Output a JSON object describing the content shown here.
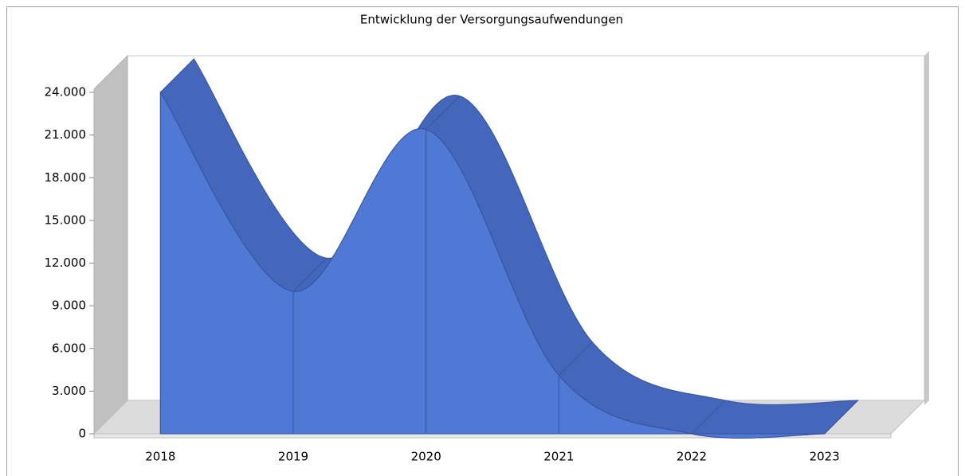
{
  "chart_data": {
    "type": "area3d",
    "title": "Entwicklung der Versorgungsaufwendungen",
    "categories": [
      "2018",
      "2019",
      "2020",
      "2021",
      "2022",
      "2023"
    ],
    "values": [
      24000,
      10000,
      21400,
      4100,
      0,
      0
    ],
    "color": "#5079d6",
    "top_color": "#4466bb",
    "ylim": [
      0,
      24000
    ],
    "yticks": [
      {
        "value": 0,
        "label": "0"
      },
      {
        "value": 3000,
        "label": "3.000"
      },
      {
        "value": 6000,
        "label": "6.000"
      },
      {
        "value": 9000,
        "label": "9.000"
      },
      {
        "value": 12000,
        "label": "12.000"
      },
      {
        "value": 15000,
        "label": "15.000"
      },
      {
        "value": 18000,
        "label": "18.000"
      },
      {
        "value": 21000,
        "label": "21.000"
      },
      {
        "value": 24000,
        "label": "24.000"
      }
    ]
  }
}
